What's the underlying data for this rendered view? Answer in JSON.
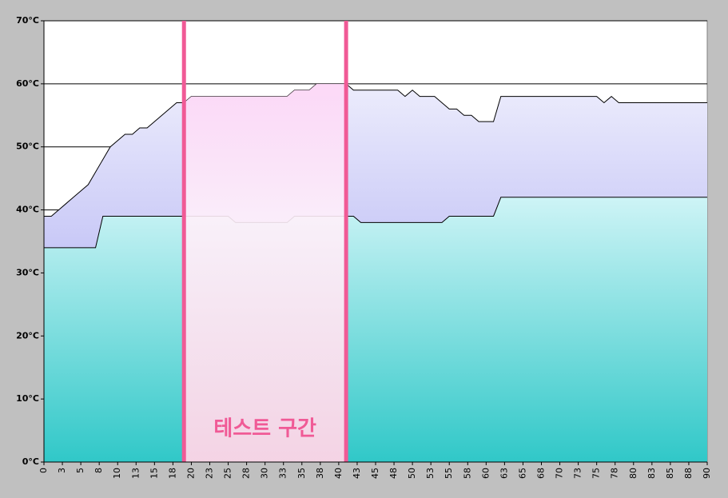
{
  "chart_data": {
    "type": "area",
    "x": [
      0,
      1,
      2,
      3,
      4,
      5,
      6,
      7,
      8,
      9,
      10,
      11,
      12,
      13,
      14,
      15,
      16,
      17,
      18,
      19,
      20,
      21,
      22,
      23,
      24,
      25,
      26,
      27,
      28,
      29,
      30,
      31,
      32,
      33,
      34,
      35,
      36,
      37,
      38,
      39,
      40,
      41,
      42,
      43,
      44,
      45,
      46,
      47,
      48,
      49,
      50,
      51,
      52,
      53,
      54,
      55,
      56,
      57,
      58,
      59,
      60,
      61,
      62,
      63,
      64,
      65,
      66,
      67,
      68,
      69,
      70,
      71,
      72,
      73,
      74,
      75,
      76,
      77,
      78,
      79,
      80,
      81,
      82,
      83,
      84,
      85,
      86,
      87,
      88,
      89,
      90
    ],
    "series": [
      {
        "color": "#9a9af0",
        "values": [
          39,
          39,
          40,
          41,
          42,
          43,
          44,
          46,
          48,
          50,
          51,
          52,
          52,
          53,
          53,
          54,
          55,
          56,
          57,
          57,
          58,
          58,
          58,
          58,
          58,
          58,
          58,
          58,
          58,
          58,
          58,
          58,
          58,
          58,
          59,
          59,
          59,
          60,
          60,
          60,
          60,
          60,
          59,
          59,
          59,
          59,
          59,
          59,
          59,
          58,
          59,
          58,
          58,
          58,
          57,
          56,
          56,
          55,
          55,
          54,
          54,
          54,
          58,
          58,
          58,
          58,
          58,
          58,
          58,
          58,
          58,
          58,
          58,
          58,
          58,
          58,
          57,
          58,
          57,
          57,
          57,
          57,
          57,
          57,
          57,
          57,
          57,
          57,
          57,
          57,
          57
        ]
      },
      {
        "color": "#30c8c8",
        "values": [
          34,
          34,
          34,
          34,
          34,
          34,
          34,
          34,
          39,
          39,
          39,
          39,
          39,
          39,
          39,
          39,
          39,
          39,
          39,
          39,
          39,
          39,
          39,
          39,
          39,
          39,
          38,
          38,
          38,
          38,
          38,
          38,
          38,
          38,
          39,
          39,
          39,
          39,
          39,
          39,
          39,
          39,
          39,
          38,
          38,
          38,
          38,
          38,
          38,
          38,
          38,
          38,
          38,
          38,
          38,
          39,
          39,
          39,
          39,
          39,
          39,
          39,
          42,
          42,
          42,
          42,
          42,
          42,
          42,
          42,
          42,
          42,
          42,
          42,
          42,
          42,
          42,
          42,
          42,
          42,
          42,
          42,
          42,
          42,
          42,
          42,
          42,
          42,
          42,
          42,
          42
        ]
      }
    ],
    "xlim": [
      0,
      90
    ],
    "xticks": [
      0,
      {
        "value": 2.5,
        "label": "3"
      },
      5,
      {
        "value": 7.5,
        "label": "8"
      },
      10,
      {
        "value": 12.5,
        "label": "13"
      },
      15,
      {
        "value": 17.5,
        "label": "18"
      },
      20,
      {
        "value": 22.5,
        "label": "23"
      },
      25,
      {
        "value": 27.5,
        "label": "28"
      },
      30,
      {
        "value": 32.5,
        "label": "33"
      },
      35,
      {
        "value": 37.5,
        "label": "38"
      },
      40,
      {
        "value": 42.5,
        "label": "43"
      },
      45,
      {
        "value": 47.5,
        "label": "48"
      },
      50,
      {
        "value": 52.5,
        "label": "53"
      },
      55,
      {
        "value": 57.5,
        "label": "58"
      },
      60,
      {
        "value": 62.5,
        "label": "63"
      },
      65,
      {
        "value": 67.5,
        "label": "68"
      },
      70,
      {
        "value": 72.5,
        "label": "73"
      },
      75,
      {
        "value": 77.5,
        "label": "78"
      },
      80,
      {
        "value": 82.5,
        "label": "83"
      },
      85,
      {
        "value": 87.5,
        "label": "88"
      },
      90
    ],
    "ylim": [
      0,
      70
    ],
    "yticks": [
      {
        "value": 0,
        "label": "0°C"
      },
      {
        "value": 10,
        "label": "10°C"
      },
      {
        "value": 20,
        "label": "20°C"
      },
      {
        "value": 30,
        "label": "30°C"
      },
      {
        "value": 40,
        "label": "40°C"
      },
      {
        "value": 50,
        "label": "50°C"
      },
      {
        "value": 60,
        "label": "60°C"
      },
      {
        "value": 70,
        "label": "70°C"
      }
    ],
    "grid": true,
    "highlight": {
      "label": "테스트 구간",
      "xrange": [
        19,
        41
      ],
      "color": "#f05a96"
    }
  }
}
